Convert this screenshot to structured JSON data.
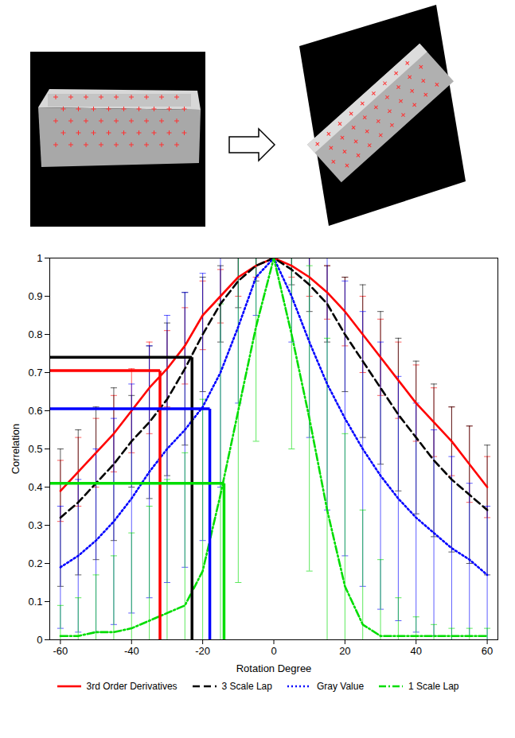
{
  "chart_data": {
    "type": "line",
    "xlabel": "Rotation Degree",
    "ylabel": "Correlation",
    "x": [
      -60,
      -55,
      -50,
      -45,
      -40,
      -35,
      -30,
      -25,
      -20,
      -15,
      -10,
      -5,
      0,
      5,
      10,
      15,
      20,
      25,
      30,
      35,
      40,
      45,
      50,
      55,
      60
    ],
    "xlim": [
      -63,
      63
    ],
    "xticks": [
      -60,
      -40,
      -20,
      0,
      20,
      40,
      60
    ],
    "ylim": [
      0,
      1
    ],
    "yticks": [
      0,
      0.1,
      0.2,
      0.3,
      0.4,
      0.5,
      0.6,
      0.7,
      0.8,
      0.9,
      1
    ],
    "legend": "bottom",
    "grid": false,
    "series": [
      {
        "name": "3rd Order Derivatives",
        "color": "#ff0000",
        "line_style": "solid",
        "values": [
          0.39,
          0.44,
          0.49,
          0.54,
          0.6,
          0.66,
          0.71,
          0.77,
          0.85,
          0.9,
          0.95,
          0.98,
          1.0,
          0.98,
          0.95,
          0.91,
          0.86,
          0.8,
          0.74,
          0.68,
          0.62,
          0.57,
          0.52,
          0.46,
          0.4
        ],
        "errors": [
          0.08,
          0.09,
          0.09,
          0.1,
          0.11,
          0.12,
          0.1,
          0.1,
          0.09,
          0.07,
          0.05,
          0.03,
          0,
          0.03,
          0.05,
          0.07,
          0.09,
          0.1,
          0.1,
          0.1,
          0.1,
          0.09,
          0.09,
          0.1,
          0.08
        ],
        "crosshair": {
          "x": -32,
          "y": 0.705
        }
      },
      {
        "name": "3 Scale Lap",
        "color": "#000000",
        "line_style": "dashed",
        "values": [
          0.32,
          0.36,
          0.41,
          0.46,
          0.52,
          0.57,
          0.63,
          0.71,
          0.8,
          0.88,
          0.94,
          0.98,
          1.0,
          0.97,
          0.93,
          0.88,
          0.8,
          0.73,
          0.66,
          0.59,
          0.53,
          0.47,
          0.42,
          0.38,
          0.34
        ],
        "errors": [
          0.18,
          0.19,
          0.2,
          0.2,
          0.12,
          0.2,
          0.2,
          0.2,
          0.15,
          0.1,
          0.07,
          0.04,
          0,
          0.04,
          0.07,
          0.1,
          0.15,
          0.2,
          0.2,
          0.2,
          0.2,
          0.2,
          0.19,
          0.18,
          0.17
        ],
        "crosshair": {
          "x": -23,
          "y": 0.74
        }
      },
      {
        "name": "Gray Value",
        "color": "#0000ff",
        "line_style": "dotted",
        "values": [
          0.19,
          0.22,
          0.26,
          0.31,
          0.37,
          0.44,
          0.5,
          0.55,
          0.61,
          0.7,
          0.82,
          0.95,
          1.0,
          0.9,
          0.78,
          0.67,
          0.58,
          0.5,
          0.43,
          0.37,
          0.32,
          0.28,
          0.24,
          0.21,
          0.17
        ],
        "errors": [
          0.16,
          0.2,
          0.24,
          0.27,
          0.3,
          0.33,
          0.35,
          0.36,
          0.35,
          0.3,
          0.2,
          0.1,
          0,
          0.12,
          0.25,
          0.33,
          0.36,
          0.36,
          0.35,
          0.32,
          0.3,
          0.27,
          0.24,
          0.2,
          0.18
        ],
        "crosshair": {
          "x": -18,
          "y": 0.605
        }
      },
      {
        "name": "1 Scale Lap",
        "color": "#00dd00",
        "line_style": "dashdot",
        "values": [
          0.01,
          0.01,
          0.02,
          0.02,
          0.03,
          0.05,
          0.07,
          0.09,
          0.18,
          0.38,
          0.6,
          0.82,
          1.0,
          0.8,
          0.58,
          0.34,
          0.14,
          0.04,
          0.01,
          0.01,
          0.01,
          0.01,
          0.01,
          0.01,
          0.01
        ],
        "errors": [
          0.08,
          0.1,
          0.15,
          0.2,
          0.25,
          0.3,
          0.35,
          0.4,
          0.45,
          0.5,
          0.45,
          0.3,
          0,
          0.3,
          0.4,
          0.45,
          0.4,
          0.3,
          0.2,
          0.1,
          0.05,
          0.03,
          0.02,
          0.02,
          0.02
        ],
        "crosshair": {
          "x": -14,
          "y": 0.41
        }
      }
    ]
  }
}
